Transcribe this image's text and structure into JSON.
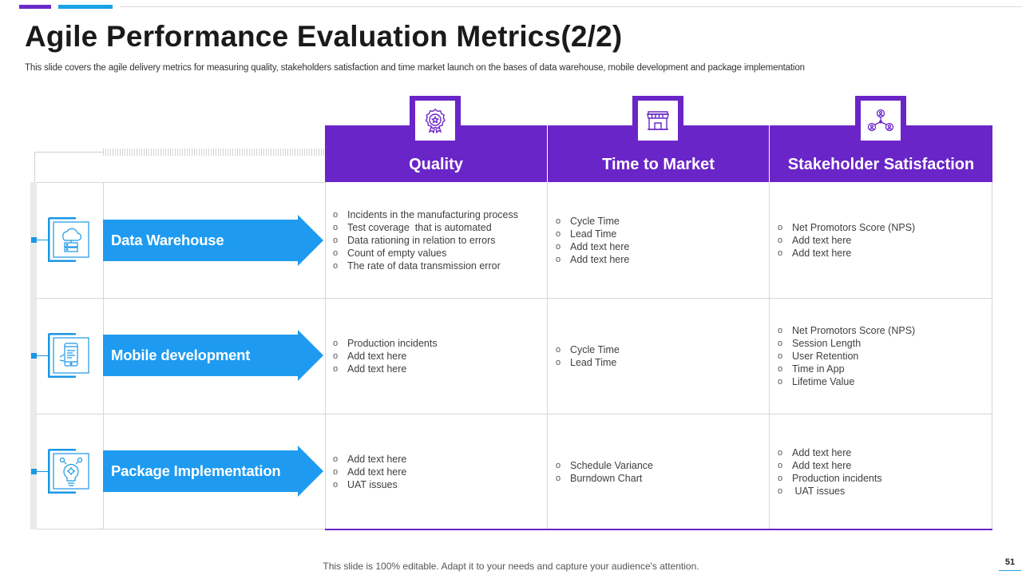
{
  "title": "Agile Performance Evaluation Metrics(2/2)",
  "subtitle": "This slide covers the agile delivery metrics for measuring quality, stakeholders satisfaction and time market launch on the bases of data warehouse, mobile development and package implementation",
  "colors": {
    "purple": "#6a25c8",
    "blue": "#1a97e4",
    "arrow_blue": "#1e9bf0"
  },
  "columns": [
    {
      "label": "Quality",
      "icon": "award-badge-icon"
    },
    {
      "label": "Time to Market",
      "icon": "storefront-icon"
    },
    {
      "label": "Stakeholder Satisfaction",
      "icon": "people-network-icon"
    }
  ],
  "rows": [
    {
      "label": "Data Warehouse",
      "icon": "cloud-server-icon",
      "cells": [
        [
          "Incidents in the manufacturing process",
          "Test coverage  that is automated",
          "Data rationing in relation to errors",
          "Count of empty values",
          "The rate of data transmission error"
        ],
        [
          "Cycle Time",
          "Lead Time",
          "Add text here",
          "Add text here"
        ],
        [
          "Net Promotors Score (NPS)",
          "Add text here",
          "Add text here"
        ]
      ]
    },
    {
      "label": "Mobile development",
      "icon": "mobile-app-icon",
      "cells": [
        [
          "Production incidents",
          "Add text here",
          "Add text here"
        ],
        [
          "Cycle Time",
          "Lead Time"
        ],
        [
          "Net Promotors Score (NPS)",
          "Session Length",
          "User Retention",
          "Time in App",
          "Lifetime Value"
        ]
      ]
    },
    {
      "label": "Package Implementation",
      "icon": "idea-gear-icon",
      "cells": [
        [
          "Add text here",
          "Add text here",
          "UAT issues"
        ],
        [
          "Schedule Variance",
          "Burndown Chart"
        ],
        [
          "Add text here",
          "Add text here",
          "Production incidents",
          " UAT issues"
        ]
      ]
    }
  ],
  "footer": "This slide is 100% editable. Adapt it to your needs and capture your audience's attention.",
  "page_number": "51"
}
